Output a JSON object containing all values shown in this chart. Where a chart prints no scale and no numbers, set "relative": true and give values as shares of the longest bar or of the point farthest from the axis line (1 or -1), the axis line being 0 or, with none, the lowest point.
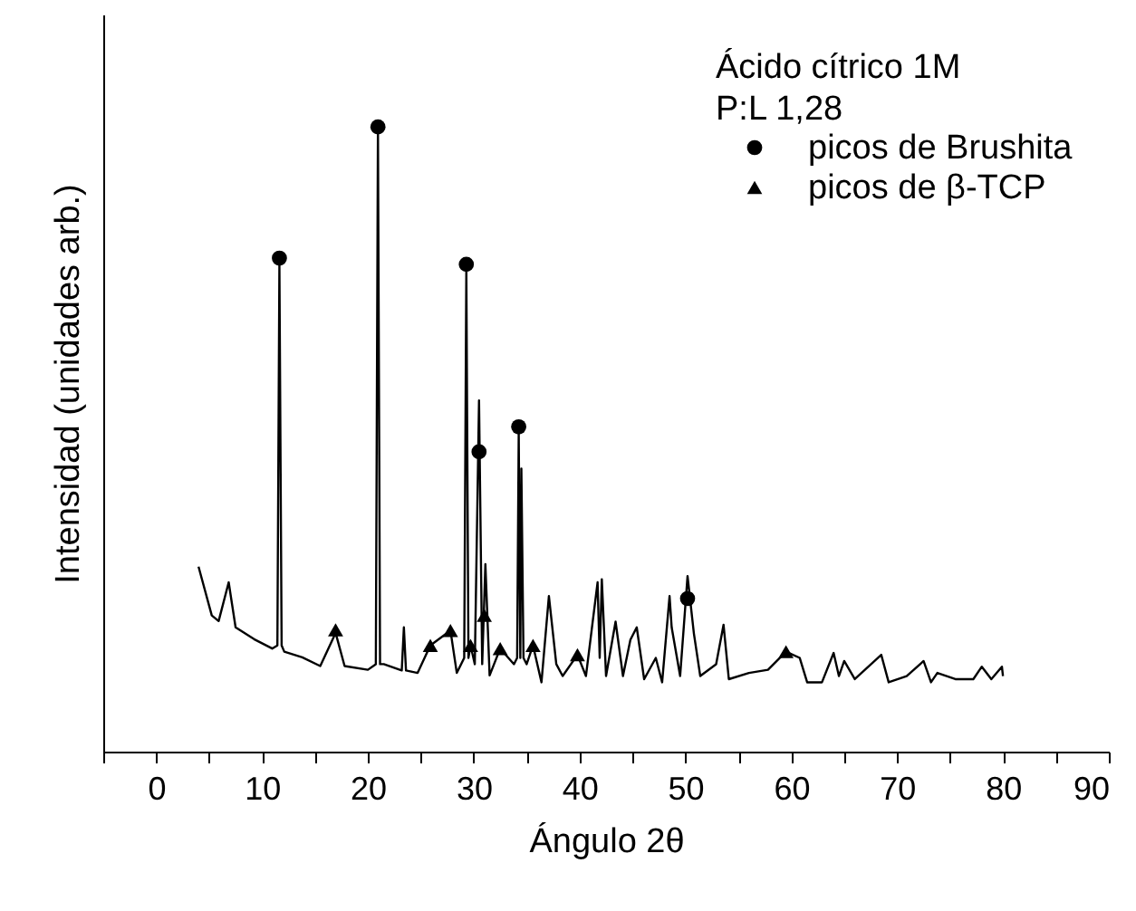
{
  "chart_data": {
    "type": "line",
    "xlabel": "Ángulo 2θ",
    "ylabel": "Intensidad (unidades arb.)",
    "legend_title": "Ácido cítrico 1M\nP:L 1,28",
    "legend": "top right",
    "relative": true,
    "grid": false,
    "xlim": [
      -5,
      90
    ],
    "xticks": [
      {
        "value": -5,
        "label": null
      },
      0,
      {
        "value": 5,
        "label": null
      },
      10,
      {
        "value": 15,
        "label": null
      },
      20,
      {
        "value": 25,
        "label": null
      },
      30,
      {
        "value": 35,
        "label": null
      },
      40,
      {
        "value": 45,
        "label": null
      },
      50,
      {
        "value": 55,
        "label": null
      },
      60,
      {
        "value": 65,
        "label": null
      },
      70,
      {
        "value": 75,
        "label": null
      },
      80,
      {
        "value": 85,
        "label": null
      },
      90
    ],
    "series": [
      {
        "type": "line",
        "color": "#000000",
        "marker": "none",
        "x": [
          4.0,
          5.25,
          5.9,
          6.85,
          7.5,
          9.25,
          10.96,
          11.45,
          11.64,
          11.85,
          12.1,
          13.8,
          15.5,
          16.95,
          17.8,
          20.0,
          20.75,
          20.95,
          21.15,
          21.5,
          23.2,
          23.4,
          23.6,
          24.7,
          25.9,
          27.8,
          28.4,
          29.1,
          29.3,
          29.5,
          29.7,
          30.1,
          30.5,
          30.8,
          31.1,
          31.5,
          32.5,
          33.8,
          34.1,
          34.25,
          34.4,
          34.5,
          34.7,
          35.0,
          35.6,
          36.4,
          37.1,
          37.8,
          38.4,
          39.8,
          40.6,
          41.7,
          41.9,
          42.1,
          42.5,
          43.4,
          44.1,
          44.8,
          45.4,
          46.1,
          47.2,
          47.8,
          48.5,
          48.7,
          49.5,
          50.2,
          50.8,
          51.4,
          52.9,
          53.6,
          54.1,
          56.0,
          57.8,
          59.5,
          60.8,
          61.5,
          62.9,
          64.0,
          64.5,
          65.0,
          66.0,
          68.5,
          69.2,
          70.9,
          72.5,
          73.2,
          73.8,
          75.5,
          77.2,
          78.0,
          78.9,
          79.9,
          80.0
        ],
        "values": [
          0.296,
          0.218,
          0.209,
          0.271,
          0.199,
          0.18,
          0.165,
          0.17,
          0.78,
          0.17,
          0.16,
          0.151,
          0.137,
          0.19,
          0.137,
          0.131,
          0.14,
          1.0,
          0.14,
          0.14,
          0.13,
          0.199,
          0.13,
          0.126,
          0.17,
          0.194,
          0.126,
          0.15,
          0.77,
          0.15,
          0.17,
          0.14,
          0.562,
          0.14,
          0.3,
          0.122,
          0.165,
          0.14,
          0.15,
          0.51,
          0.15,
          0.453,
          0.15,
          0.14,
          0.17,
          0.111,
          0.249,
          0.14,
          0.121,
          0.155,
          0.121,
          0.271,
          0.15,
          0.276,
          0.121,
          0.208,
          0.121,
          0.179,
          0.199,
          0.116,
          0.15,
          0.111,
          0.249,
          0.199,
          0.121,
          0.281,
          0.189,
          0.121,
          0.14,
          0.203,
          0.116,
          0.126,
          0.131,
          0.16,
          0.15,
          0.111,
          0.111,
          0.158,
          0.121,
          0.145,
          0.116,
          0.155,
          0.111,
          0.121,
          0.145,
          0.111,
          0.126,
          0.116,
          0.116,
          0.136,
          0.116,
          0.136,
          0.121
        ]
      },
      {
        "type": "scatter",
        "name": "picos de Brushita",
        "color": "#000000",
        "marker": "circle",
        "x": [
          11.64,
          20.95,
          29.3,
          30.5,
          34.25,
          50.2
        ],
        "values": [
          0.79,
          1.0,
          0.78,
          0.48,
          0.52,
          0.245
        ]
      },
      {
        "type": "scatter",
        "name": "picos de β-TCP",
        "color": "#000000",
        "marker": "triangle",
        "x": [
          16.95,
          25.9,
          27.8,
          29.7,
          31.0,
          32.5,
          35.6,
          39.8,
          59.5
        ],
        "values": [
          0.195,
          0.17,
          0.194,
          0.17,
          0.218,
          0.165,
          0.17,
          0.155,
          0.16
        ]
      }
    ]
  }
}
